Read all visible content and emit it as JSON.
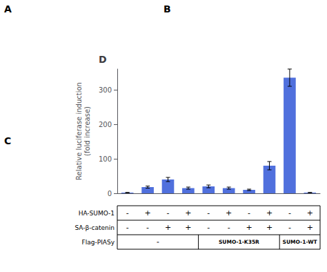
{
  "chart_data": {
    "type": "bar",
    "title": "D",
    "ylabel": "Relative luciferase induction\n(fold increase)",
    "categories": [
      null,
      null,
      null,
      null,
      null,
      null,
      null,
      null,
      null,
      null
    ],
    "values": [
      2,
      18,
      40,
      15,
      20,
      15,
      10,
      80,
      335,
      2
    ],
    "errors": [
      0.5,
      3,
      6,
      3,
      4,
      3,
      2,
      12,
      25,
      0.5
    ],
    "ylim": [
      0,
      360
    ],
    "yticks": [
      0,
      100,
      200,
      300
    ],
    "grid": false,
    "tick_labels": "y",
    "annotations": [
      "A",
      "B",
      "C"
    ],
    "table": {
      "rows": [
        {
          "label": "HA-SUMO-1",
          "cells": [
            "-",
            "+",
            "-",
            "+",
            "-",
            "+",
            "-",
            "+",
            "-",
            "+"
          ]
        },
        {
          "label": "SA-β-catenin",
          "cells": [
            "-",
            "-",
            "+",
            "+",
            "-",
            "-",
            "+",
            "+",
            "-",
            "+"
          ]
        },
        {
          "label": "Flag-PIASy",
          "groups": [
            {
              "label": "–",
              "columns": 4
            },
            {
              "label": "SUMO-1-K35R",
              "columns": 4
            },
            {
              "label": "SUMO-1-WT",
              "columns": 2
            }
          ]
        }
      ]
    }
  }
}
